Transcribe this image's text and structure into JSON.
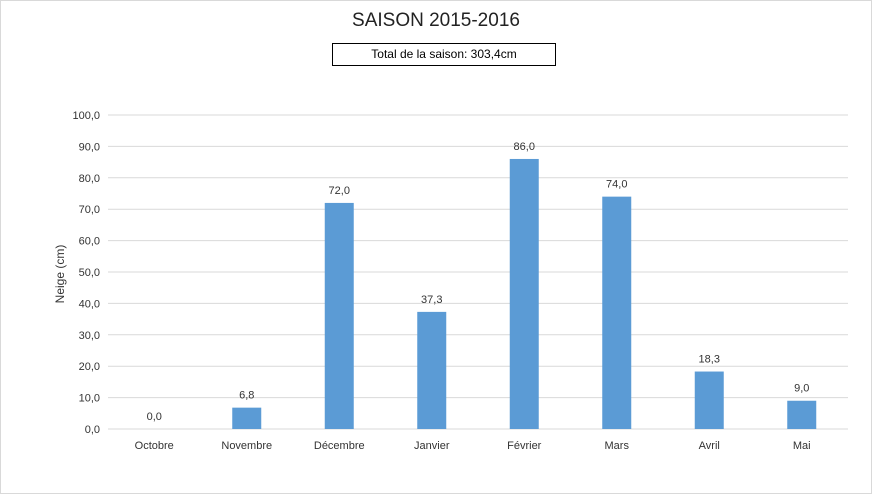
{
  "chart_data": {
    "type": "bar",
    "title": "SAISON 2015-2016",
    "subtitle": "Total de la saison: 303,4cm",
    "xlabel": "",
    "ylabel": "Neige (cm)",
    "ylim": [
      0,
      100
    ],
    "ytick_step": 10,
    "categories": [
      "Octobre",
      "Novembre",
      "Décembre",
      "Janvier",
      "Février",
      "Mars",
      "Avril",
      "Mai"
    ],
    "values": [
      0.0,
      6.8,
      72.0,
      37.3,
      86.0,
      74.0,
      18.3,
      9.0
    ],
    "value_labels": [
      "0,0",
      "6,8",
      "72,0",
      "37,3",
      "86,0",
      "74,0",
      "18,3",
      "9,0"
    ],
    "ytick_labels": [
      "0,0",
      "10,0",
      "20,0",
      "30,0",
      "40,0",
      "50,0",
      "60,0",
      "70,0",
      "80,0",
      "90,0",
      "100,0"
    ],
    "grid": true,
    "legend": "none",
    "colors": {
      "bar": "#5b9bd5",
      "grid": "#d9d9d9"
    }
  }
}
